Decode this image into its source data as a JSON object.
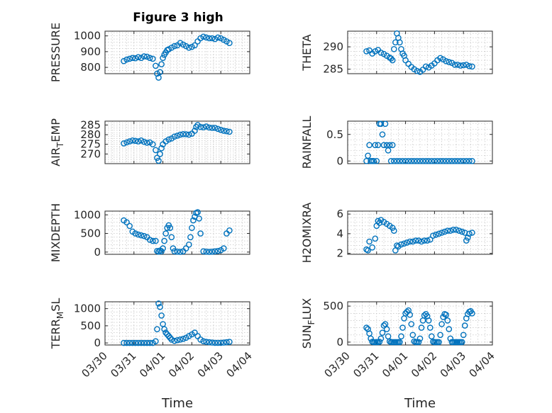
{
  "chart_data": {
    "type": "scatter",
    "title": "Figure 3 high",
    "x_tick_labels": [
      "03/30",
      "03/31",
      "04/01",
      "04/02",
      "04/03",
      "04/04"
    ],
    "x_axis_days": [
      0,
      1,
      2,
      3,
      4,
      5
    ],
    "x_axis_start": "03/30",
    "xlabel": "Time",
    "marker_color": "#0072BD",
    "grid": true,
    "subplots": [
      {
        "ylabel": "PRESSURE",
        "ylim": [
          760,
          1030
        ],
        "yticks": [
          800,
          900,
          1000
        ],
        "yticklabels": [
          "800",
          "900",
          "1000"
        ],
        "x": [
          0.65,
          0.75,
          0.85,
          0.95,
          1.05,
          1.15,
          1.25,
          1.35,
          1.45,
          1.55,
          1.65,
          1.75,
          1.8,
          1.85,
          1.9,
          1.95,
          2.0,
          2.05,
          2.1,
          2.15,
          2.2,
          2.3,
          2.4,
          2.5,
          2.6,
          2.7,
          2.8,
          2.9,
          3.0,
          3.1,
          3.2,
          3.3,
          3.4,
          3.5,
          3.6,
          3.7,
          3.8,
          3.9,
          4.0,
          4.1,
          4.2,
          4.3
        ],
        "values": [
          840,
          850,
          855,
          860,
          858,
          865,
          860,
          870,
          868,
          860,
          855,
          810,
          760,
          735,
          770,
          820,
          860,
          880,
          895,
          910,
          915,
          925,
          935,
          940,
          955,
          945,
          935,
          925,
          930,
          940,
          965,
          985,
          995,
          990,
          985,
          985,
          980,
          990,
          985,
          975,
          965,
          955
        ]
      },
      {
        "ylabel": "THETA",
        "ylim": [
          284,
          293.5
        ],
        "yticks": [
          285,
          290
        ],
        "yticklabels": [
          "285",
          "290"
        ],
        "x": [
          0.65,
          0.75,
          0.85,
          0.95,
          1.05,
          1.15,
          1.25,
          1.35,
          1.45,
          1.5,
          1.55,
          1.6,
          1.65,
          1.7,
          1.75,
          1.8,
          1.85,
          1.9,
          1.95,
          2.0,
          2.1,
          2.2,
          2.3,
          2.4,
          2.5,
          2.6,
          2.7,
          2.8,
          2.9,
          3.0,
          3.1,
          3.2,
          3.3,
          3.4,
          3.5,
          3.6,
          3.7,
          3.8,
          3.9,
          4.0,
          4.1,
          4.2,
          4.3
        ],
        "values": [
          289,
          289.2,
          288.5,
          289,
          289.3,
          288.7,
          288.4,
          288,
          287.6,
          287.4,
          287,
          289.5,
          291,
          293,
          292,
          291,
          289.5,
          288.5,
          288,
          287,
          286.2,
          285.5,
          285,
          284.6,
          284.4,
          284.9,
          285.6,
          285.4,
          285.8,
          286.3,
          287,
          287.5,
          287.2,
          286.8,
          286.6,
          286.4,
          286,
          286,
          285.8,
          285.9,
          286,
          285.7,
          285.6
        ]
      },
      {
        "ylabel": "AIR_TEMP",
        "ylim": [
          265,
          287
        ],
        "yticks": [
          270,
          275,
          280,
          285
        ],
        "yticklabels": [
          "270",
          "275",
          "280",
          "285"
        ],
        "x": [
          0.65,
          0.75,
          0.85,
          0.95,
          1.05,
          1.15,
          1.25,
          1.35,
          1.45,
          1.55,
          1.65,
          1.75,
          1.8,
          1.85,
          1.9,
          1.95,
          2.0,
          2.1,
          2.2,
          2.3,
          2.4,
          2.5,
          2.6,
          2.7,
          2.8,
          2.9,
          3.0,
          3.1,
          3.15,
          3.2,
          3.3,
          3.4,
          3.5,
          3.6,
          3.7,
          3.8,
          3.9,
          4.0,
          4.1,
          4.2,
          4.3
        ],
        "values": [
          275.5,
          276,
          276.5,
          277,
          276.8,
          276.5,
          277,
          276.3,
          275.8,
          276,
          275,
          272,
          268,
          266.5,
          270,
          273,
          275,
          276.5,
          277.5,
          278,
          279,
          279.5,
          280,
          280.3,
          280.2,
          280,
          280.5,
          282,
          284,
          285,
          284,
          283.8,
          284.2,
          283.7,
          283.5,
          283.5,
          283,
          282.5,
          282,
          281.8,
          281.5
        ]
      },
      {
        "ylabel": "RAINFALL",
        "ylim": [
          -0.05,
          0.75
        ],
        "yticks": [
          0,
          0.5
        ],
        "yticklabels": [
          "0",
          "0.5"
        ],
        "x": [
          0.65,
          0.7,
          0.75,
          0.8,
          0.85,
          0.9,
          0.95,
          1.0,
          1.05,
          1.1,
          1.15,
          1.2,
          1.25,
          1.3,
          1.35,
          1.4,
          1.45,
          1.5,
          1.55,
          1.6,
          1.7,
          1.8,
          1.9,
          2.0,
          2.1,
          2.2,
          2.3,
          2.4,
          2.5,
          2.6,
          2.7,
          2.8,
          2.9,
          3.0,
          3.1,
          3.2,
          3.3,
          3.4,
          3.5,
          3.6,
          3.7,
          3.8,
          3.9,
          4.0,
          4.1,
          4.2,
          4.3
        ],
        "values": [
          0,
          0.1,
          0.3,
          0,
          0,
          0,
          0.3,
          0,
          0.3,
          0.7,
          0.7,
          0.5,
          0.3,
          0.7,
          0.3,
          0.2,
          0.3,
          0,
          0.3,
          0,
          0,
          0,
          0,
          0,
          0,
          0,
          0,
          0,
          0,
          0,
          0,
          0,
          0,
          0,
          0,
          0,
          0,
          0,
          0,
          0,
          0,
          0,
          0,
          0,
          0,
          0,
          0
        ]
      },
      {
        "ylabel": "MIXDEPTH",
        "ylim": [
          -60,
          1100
        ],
        "yticks": [
          0,
          500,
          1000
        ],
        "yticklabels": [
          "0",
          "500",
          "1000"
        ],
        "x": [
          0.65,
          0.75,
          0.85,
          0.95,
          1.05,
          1.15,
          1.25,
          1.35,
          1.45,
          1.55,
          1.65,
          1.75,
          1.8,
          1.85,
          1.9,
          1.95,
          2.0,
          2.05,
          2.1,
          2.15,
          2.2,
          2.25,
          2.3,
          2.35,
          2.4,
          2.5,
          2.6,
          2.7,
          2.8,
          2.9,
          2.95,
          3.0,
          3.05,
          3.1,
          3.15,
          3.2,
          3.25,
          3.3,
          3.4,
          3.5,
          3.6,
          3.7,
          3.8,
          3.9,
          4.0,
          4.1,
          4.2,
          4.3
        ],
        "values": [
          850,
          800,
          700,
          550,
          500,
          470,
          450,
          430,
          400,
          330,
          300,
          300,
          30,
          10,
          40,
          20,
          100,
          300,
          500,
          650,
          720,
          650,
          400,
          100,
          20,
          10,
          5,
          20,
          100,
          200,
          400,
          650,
          850,
          950,
          1050,
          1070,
          900,
          500,
          20,
          10,
          5,
          10,
          20,
          30,
          50,
          100,
          500,
          580
        ]
      },
      {
        "ylabel": "H2OMIXRA",
        "ylim": [
          1.9,
          6.3
        ],
        "yticks": [
          2,
          4,
          6
        ],
        "yticklabels": [
          "2",
          "4",
          "6"
        ],
        "x": [
          0.65,
          0.7,
          0.75,
          0.85,
          0.95,
          1.0,
          1.05,
          1.1,
          1.15,
          1.25,
          1.35,
          1.45,
          1.55,
          1.6,
          1.65,
          1.7,
          1.75,
          1.85,
          1.95,
          2.05,
          2.15,
          2.25,
          2.35,
          2.45,
          2.55,
          2.65,
          2.75,
          2.85,
          2.95,
          3.05,
          3.15,
          3.25,
          3.35,
          3.45,
          3.55,
          3.65,
          3.75,
          3.85,
          3.95,
          4.05,
          4.1,
          4.15,
          4.2,
          4.3
        ],
        "values": [
          2.4,
          2.3,
          3.2,
          2.6,
          3.5,
          4.8,
          5.3,
          5.1,
          5.4,
          5.2,
          5,
          4.8,
          4.6,
          4.3,
          2.3,
          2.8,
          2.7,
          2.9,
          3.0,
          3.1,
          3.2,
          3.2,
          3.3,
          3.3,
          3.2,
          3.3,
          3.3,
          3.4,
          3.8,
          3.9,
          4.0,
          4.1,
          4.2,
          4.3,
          4.3,
          4.4,
          4.4,
          4.3,
          4.2,
          4.1,
          3.3,
          3.6,
          4.0,
          4.1
        ]
      },
      {
        "ylabel": "TERR_MSL",
        "ylim": [
          -60,
          1200
        ],
        "yticks": [
          0,
          500,
          1000
        ],
        "yticklabels": [
          "0",
          "500",
          "1000"
        ],
        "x": [
          0.65,
          0.75,
          0.85,
          0.95,
          1.05,
          1.15,
          1.25,
          1.35,
          1.45,
          1.55,
          1.65,
          1.75,
          1.8,
          1.85,
          1.9,
          1.95,
          2.0,
          2.05,
          2.1,
          2.15,
          2.2,
          2.25,
          2.3,
          2.4,
          2.5,
          2.6,
          2.7,
          2.8,
          2.9,
          3.0,
          3.1,
          3.2,
          3.3,
          3.4,
          3.5,
          3.6,
          3.7,
          3.8,
          3.9,
          4.0,
          4.1,
          4.2,
          4.3
        ],
        "values": [
          0,
          0,
          0,
          0,
          0,
          0,
          0,
          0,
          0,
          0,
          0,
          50,
          400,
          1150,
          1050,
          800,
          550,
          400,
          300,
          250,
          200,
          150,
          100,
          60,
          80,
          100,
          120,
          150,
          200,
          250,
          300,
          200,
          100,
          50,
          30,
          20,
          10,
          5,
          5,
          5,
          10,
          20,
          30
        ]
      },
      {
        "ylabel": "SUN_FLUX",
        "ylim": [
          -40,
          560
        ],
        "yticks": [
          0,
          500
        ],
        "yticklabels": [
          "0",
          "500"
        ],
        "x": [
          0.65,
          0.7,
          0.75,
          0.8,
          0.85,
          0.9,
          0.95,
          1.0,
          1.05,
          1.1,
          1.15,
          1.2,
          1.25,
          1.3,
          1.35,
          1.4,
          1.45,
          1.5,
          1.55,
          1.6,
          1.65,
          1.7,
          1.75,
          1.8,
          1.85,
          1.9,
          1.95,
          2.0,
          2.05,
          2.1,
          2.15,
          2.2,
          2.25,
          2.3,
          2.35,
          2.4,
          2.45,
          2.5,
          2.55,
          2.6,
          2.65,
          2.7,
          2.75,
          2.8,
          2.85,
          2.9,
          2.95,
          3.0,
          3.05,
          3.1,
          3.15,
          3.2,
          3.25,
          3.3,
          3.35,
          3.4,
          3.45,
          3.5,
          3.55,
          3.6,
          3.65,
          3.7,
          3.75,
          3.8,
          3.85,
          3.9,
          3.95,
          4.0,
          4.05,
          4.1,
          4.15,
          4.2,
          4.25,
          4.3
        ],
        "values": [
          200,
          180,
          120,
          50,
          5,
          0,
          0,
          0,
          0,
          5,
          50,
          130,
          230,
          250,
          180,
          80,
          10,
          0,
          0,
          0,
          0,
          0,
          0,
          0,
          80,
          200,
          330,
          400,
          420,
          440,
          380,
          250,
          100,
          10,
          0,
          0,
          0,
          50,
          200,
          300,
          370,
          390,
          360,
          300,
          200,
          80,
          5,
          0,
          0,
          0,
          0,
          100,
          250,
          350,
          390,
          380,
          300,
          180,
          50,
          0,
          0,
          0,
          0,
          0,
          0,
          0,
          0,
          100,
          230,
          330,
          390,
          420,
          430,
          400
        ]
      }
    ]
  }
}
